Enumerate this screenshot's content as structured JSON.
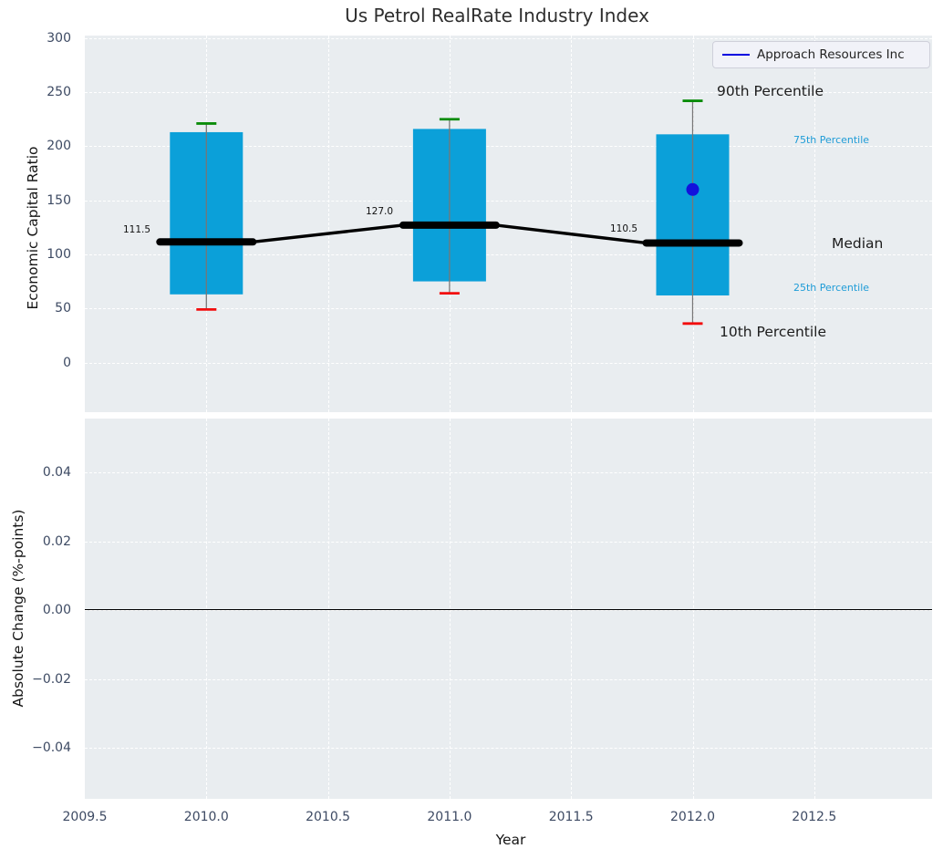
{
  "legend": {
    "label": "Approach Resources Inc"
  },
  "colors": {
    "box": "#0ba0d9",
    "whisker": "#777777",
    "cap_90th": "#0a8c0a",
    "cap_10th": "#f20d0d",
    "median_line": "#000000",
    "company_point": "#1212dc",
    "legend_line": "#0000e0",
    "percentile_label_blue": "#1e9cd7",
    "axes_background": "#e9edf0",
    "gridline": "#ffffff",
    "tick_text": "#3d4a63",
    "zero_line": "#000000"
  },
  "chart_data": {
    "type": "boxplot+line",
    "title": "Us Petrol RealRate Industry Index",
    "xlabel": "Year",
    "xlim": [
      2009.5,
      2012.99
    ],
    "grid": "dashed-white",
    "legend_position": "upper right",
    "xticks": [
      {
        "v": 2009.5,
        "label": "2009.5"
      },
      {
        "v": 2010.0,
        "label": "2010.0"
      },
      {
        "v": 2010.5,
        "label": "2010.5"
      },
      {
        "v": 2011.0,
        "label": "2011.0"
      },
      {
        "v": 2011.5,
        "label": "2011.5"
      },
      {
        "v": 2012.0,
        "label": "2012.0"
      },
      {
        "v": 2012.5,
        "label": "2012.5"
      }
    ],
    "panels": [
      {
        "name": "economic-capital-ratio",
        "ylabel": "Economic Capital Ratio",
        "ylim": [
          -46,
          302
        ],
        "yticks": [
          {
            "v": 300,
            "label": "300"
          },
          {
            "v": 250,
            "label": "250"
          },
          {
            "v": 200,
            "label": "200"
          },
          {
            "v": 150,
            "label": "150"
          },
          {
            "v": 100,
            "label": "100"
          },
          {
            "v": 50,
            "label": "50"
          },
          {
            "v": 0,
            "label": "0"
          }
        ],
        "boxes": [
          {
            "year": 2010,
            "p10": 49,
            "p25": 63,
            "median": 111.5,
            "p75": 213,
            "p90": 221,
            "median_label": "111.5"
          },
          {
            "year": 2011,
            "p10": 64,
            "p25": 75,
            "median": 127.0,
            "p75": 216,
            "p90": 225,
            "median_label": "127.0"
          },
          {
            "year": 2012,
            "p10": 36,
            "p25": 62,
            "median": 110.5,
            "p75": 211,
            "p90": 242,
            "median_label": "110.5"
          }
        ],
        "company_series": {
          "name": "Approach Resources Inc",
          "points": [
            {
              "year": 2012,
              "value": 160
            }
          ]
        },
        "percentile_annotations": {
          "p90": "90th Percentile",
          "p75": "75th Percentile",
          "median": "Median",
          "p25": "25th Percentile",
          "p10": "10th Percentile"
        }
      },
      {
        "name": "absolute-change",
        "ylabel": "Absolute Change (%-points)",
        "ylim": [
          -0.0555,
          0.0555
        ],
        "yticks": [
          {
            "v": 0.04,
            "label": "0.04"
          },
          {
            "v": 0.02,
            "label": "0.02"
          },
          {
            "v": 0.0,
            "label": "0.00"
          },
          {
            "v": -0.02,
            "label": "−0.02"
          },
          {
            "v": -0.04,
            "label": "−0.04"
          }
        ],
        "zero_line": 0.0
      }
    ]
  }
}
